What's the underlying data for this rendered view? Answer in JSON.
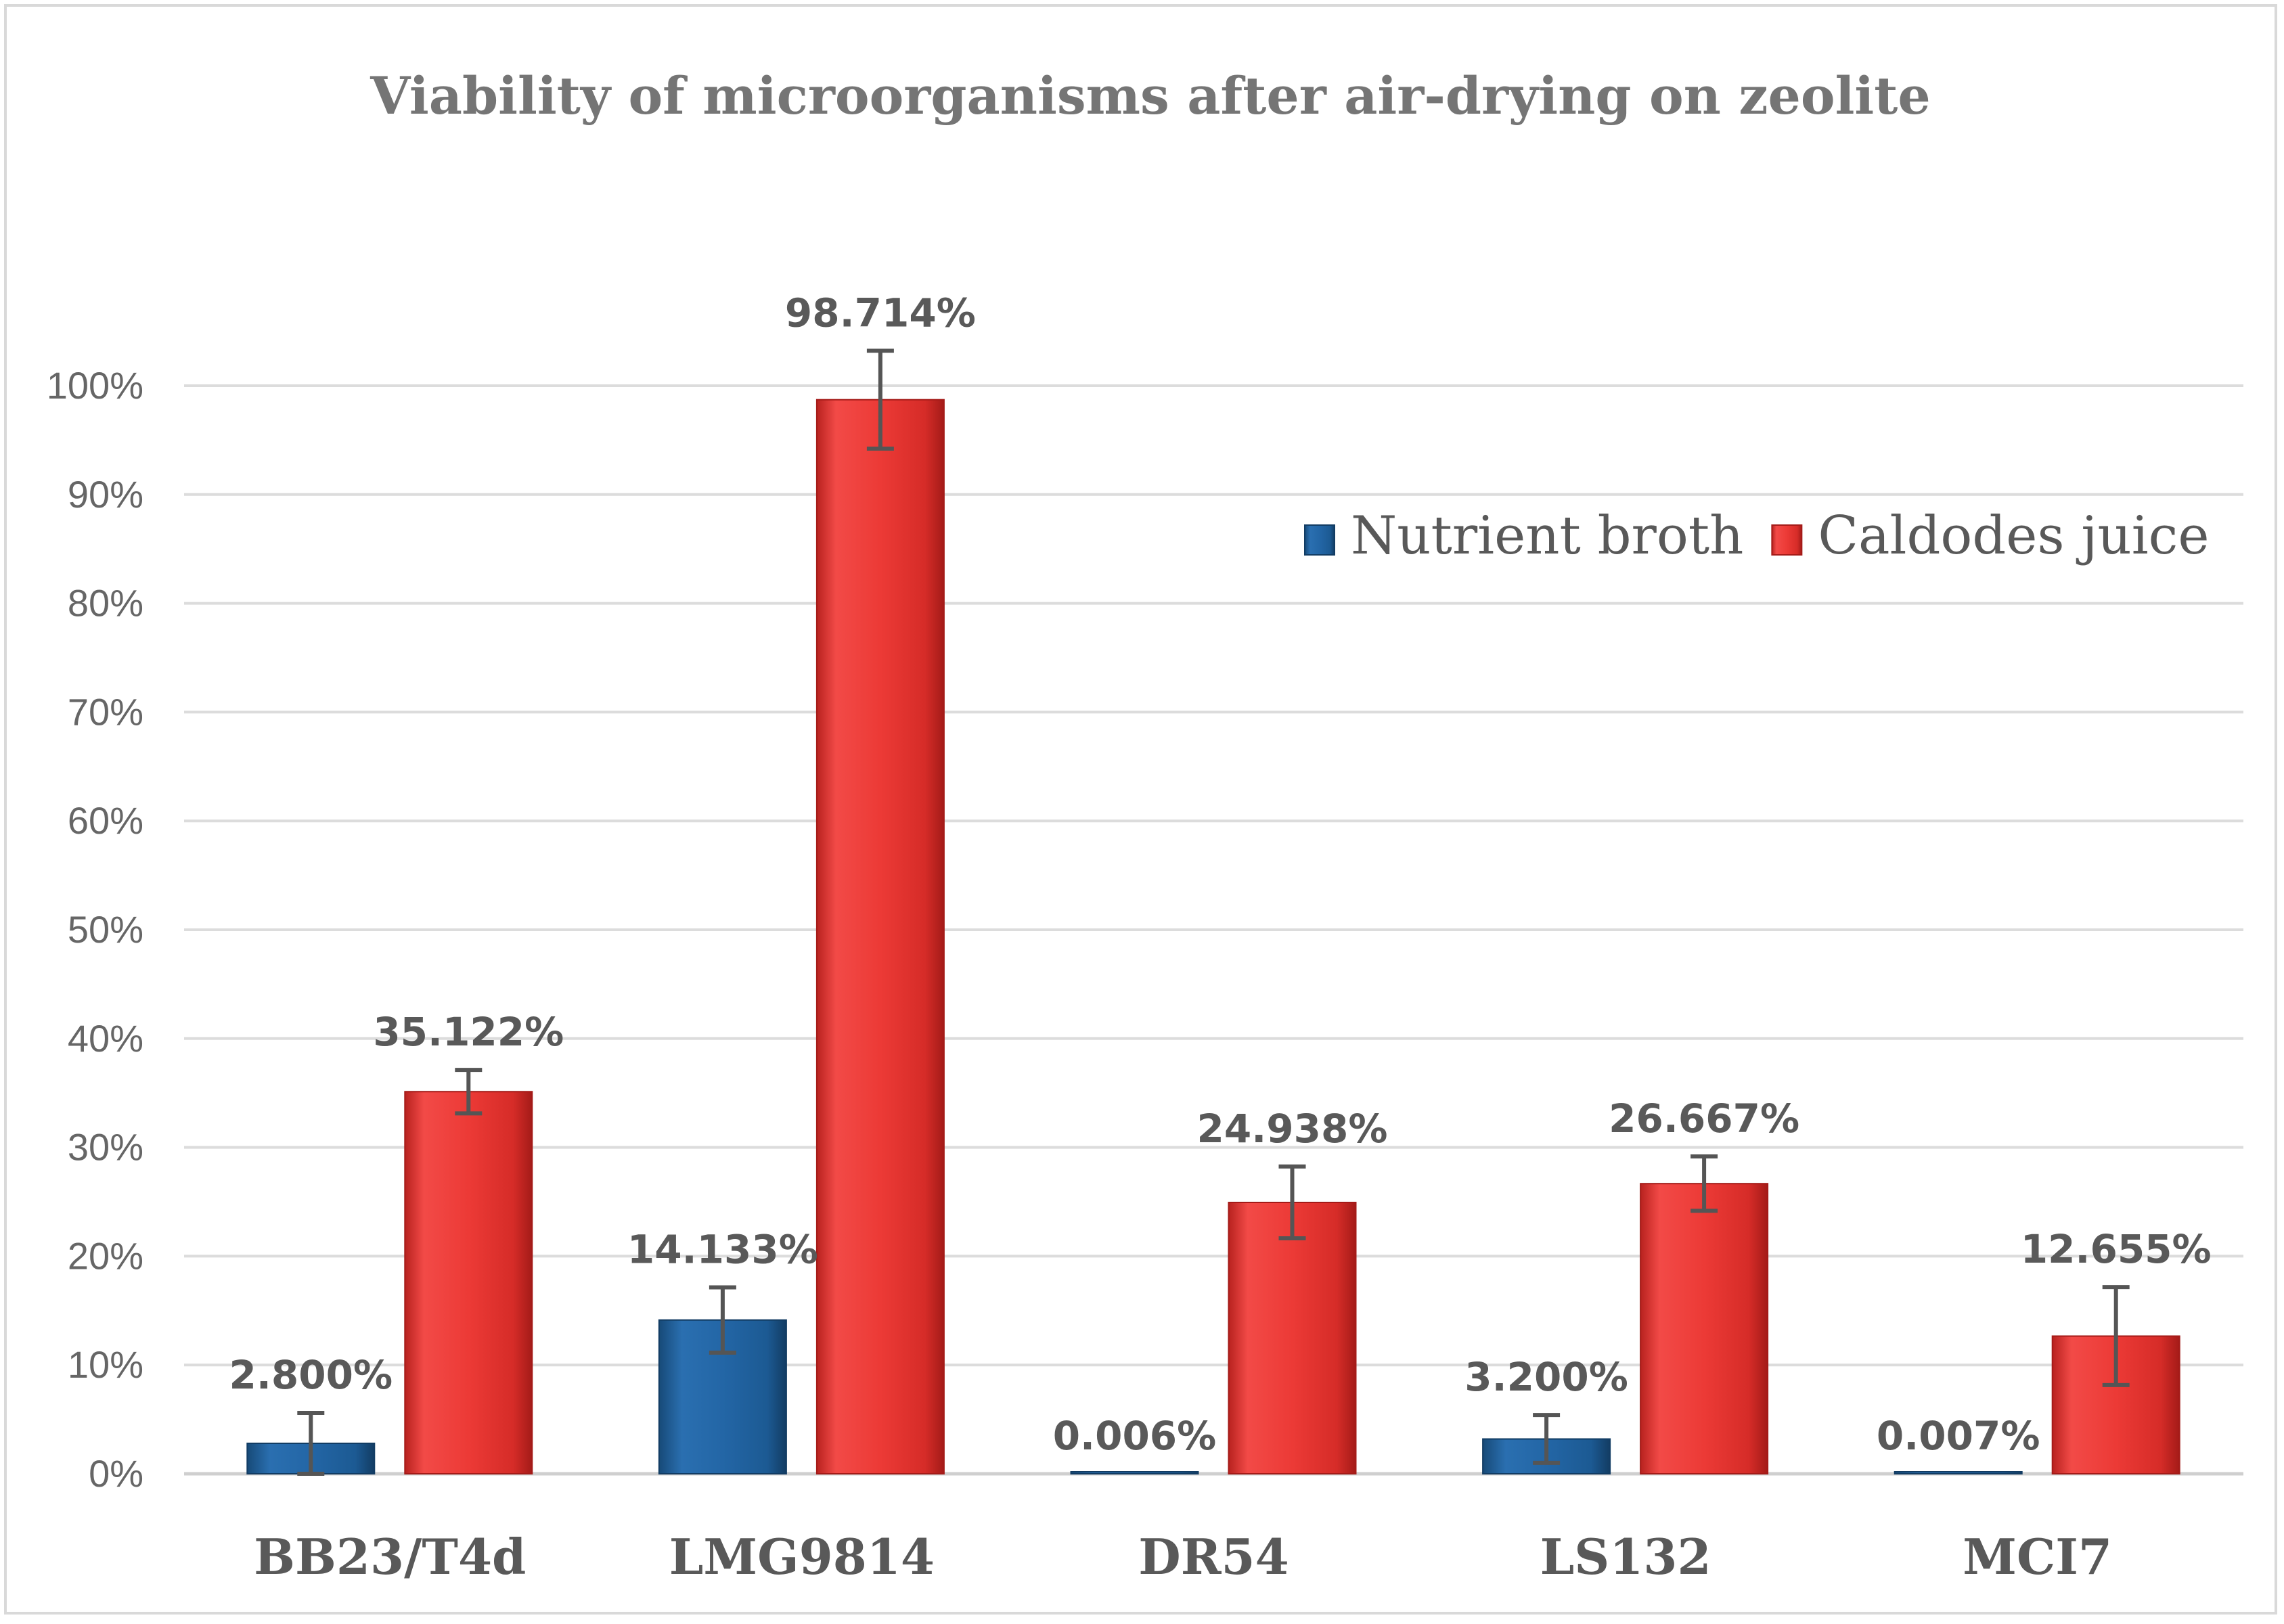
{
  "chart_data": {
    "type": "bar",
    "title": "Viability of microorganisms after air-drying on zeolite",
    "xlabel": "",
    "ylabel": "",
    "ylim": [
      0,
      100
    ],
    "yticks": [
      0,
      10,
      20,
      30,
      40,
      50,
      60,
      70,
      80,
      90,
      100
    ],
    "ytick_suffix": "%",
    "grid": true,
    "legend_position": "top-right",
    "categories": [
      "BB23/T4d",
      "LMG9814",
      "DR54",
      "LS132",
      "MCI7"
    ],
    "series": [
      {
        "name": "Nutrient broth",
        "color": "#1f5f99",
        "values": [
          2.8,
          14.133,
          0.006,
          3.2,
          0.007
        ],
        "labels": [
          "2.800%",
          "14.133%",
          "0.006%",
          "3.200%",
          "0.007%"
        ],
        "error": [
          2.8,
          3.0,
          0,
          2.2,
          0
        ]
      },
      {
        "name": "Caldodes juice",
        "color": "#e53935",
        "values": [
          35.122,
          98.714,
          24.938,
          26.667,
          12.655
        ],
        "labels": [
          "35.122%",
          "98.714%",
          "24.938%",
          "26.667%",
          "12.655%"
        ],
        "error": [
          2.0,
          4.5,
          3.3,
          2.5,
          4.5
        ]
      }
    ]
  }
}
